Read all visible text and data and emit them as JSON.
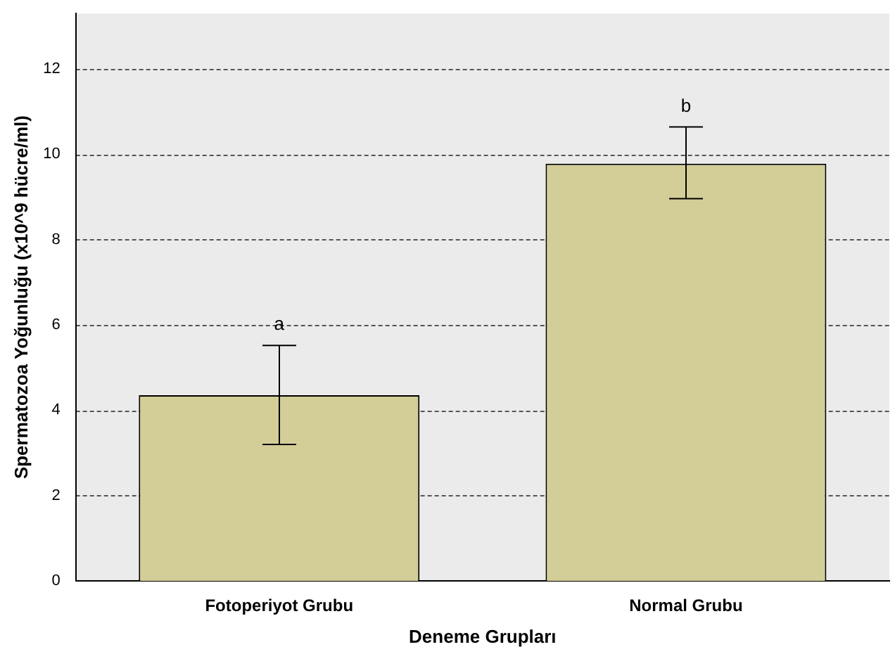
{
  "chart_data": {
    "type": "bar",
    "xlabel": "Deneme Grupları",
    "ylabel": "Spermatozoa Yoğunluğu (x10^9 hücre/ml)",
    "categories": [
      "Fotoperiyot Grubu",
      "Normal Grubu"
    ],
    "values": [
      4.35,
      9.78
    ],
    "errors": [
      [
        3.2,
        5.52
      ],
      [
        8.96,
        10.64
      ]
    ],
    "color": "#d3ce97",
    "ylim": [
      0,
      13.3
    ],
    "yticks": [
      0,
      2,
      4,
      6,
      8,
      10,
      12
    ],
    "grid": "y",
    "legend": false,
    "annotations": [
      {
        "text": "a",
        "x": "Fotoperiyot Grubu",
        "y": 5.52
      },
      {
        "text": "b",
        "x": "Normal Grubu",
        "y": 10.64
      }
    ]
  }
}
